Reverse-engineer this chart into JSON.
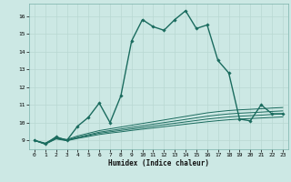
{
  "title": "",
  "xlabel": "Humidex (Indice chaleur)",
  "bg_color": "#cce8e4",
  "line_color": "#1a6b5e",
  "grid_color": "#b8d8d2",
  "xlim": [
    -0.5,
    23.5
  ],
  "ylim": [
    8.5,
    16.7
  ],
  "xticks": [
    0,
    1,
    2,
    3,
    4,
    5,
    6,
    7,
    8,
    9,
    10,
    11,
    12,
    13,
    14,
    15,
    16,
    17,
    18,
    19,
    20,
    21,
    22,
    23
  ],
  "yticks": [
    9,
    10,
    11,
    12,
    13,
    14,
    15,
    16
  ],
  "series": [
    [
      9.0,
      8.8,
      9.2,
      9.0,
      9.8,
      10.3,
      11.1,
      10.0,
      11.5,
      14.6,
      15.8,
      15.4,
      15.2,
      15.8,
      16.3,
      15.3,
      15.5,
      13.5,
      12.8,
      10.2,
      10.1,
      11.0,
      10.5,
      10.5
    ],
    [
      9.0,
      8.85,
      9.15,
      9.05,
      9.25,
      9.4,
      9.55,
      9.65,
      9.75,
      9.85,
      9.95,
      10.05,
      10.15,
      10.25,
      10.35,
      10.45,
      10.55,
      10.62,
      10.68,
      10.72,
      10.75,
      10.78,
      10.82,
      10.85
    ],
    [
      9.0,
      8.82,
      9.12,
      9.02,
      9.18,
      9.32,
      9.46,
      9.55,
      9.64,
      9.73,
      9.82,
      9.91,
      10.0,
      10.09,
      10.18,
      10.27,
      10.36,
      10.43,
      10.49,
      10.53,
      10.56,
      10.59,
      10.63,
      10.66
    ],
    [
      9.0,
      8.8,
      9.1,
      9.0,
      9.14,
      9.27,
      9.4,
      9.48,
      9.56,
      9.64,
      9.72,
      9.8,
      9.88,
      9.96,
      10.04,
      10.12,
      10.2,
      10.26,
      10.32,
      10.36,
      10.39,
      10.42,
      10.46,
      10.49
    ],
    [
      9.0,
      8.78,
      9.08,
      8.98,
      9.11,
      9.22,
      9.33,
      9.41,
      9.48,
      9.56,
      9.63,
      9.7,
      9.77,
      9.84,
      9.91,
      9.98,
      10.05,
      10.11,
      10.16,
      10.2,
      10.23,
      10.26,
      10.29,
      10.32
    ]
  ]
}
